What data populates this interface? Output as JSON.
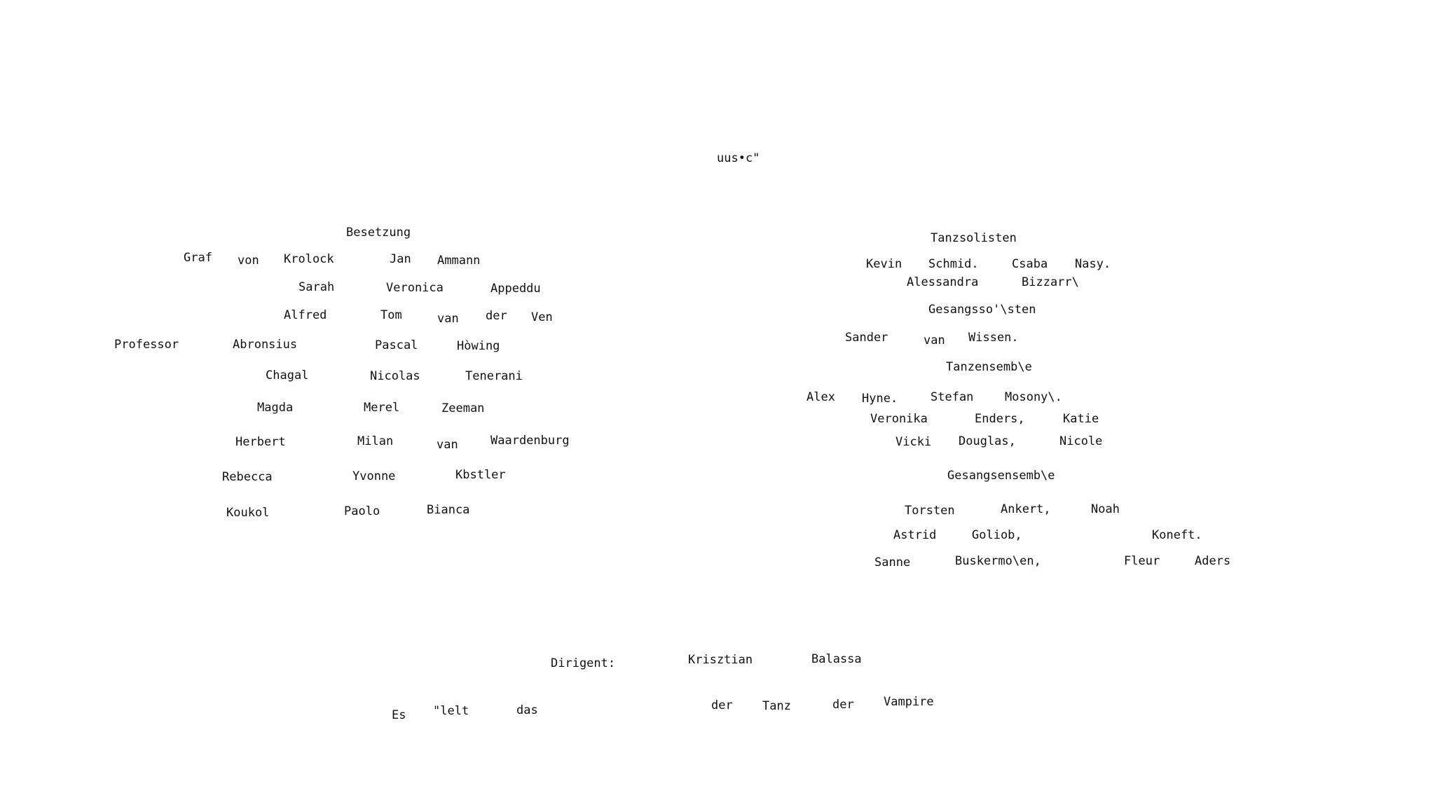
{
  "header": {
    "text": "uus•c\""
  },
  "besetzung": {
    "heading": "Besetzung",
    "rows": [
      [
        "Graf",
        "von",
        "Krolock",
        "Jan",
        "Ammann"
      ],
      [
        "Sarah",
        "Veronica",
        "Appeddu"
      ],
      [
        "Alfred",
        "Tom",
        "van",
        "der",
        "Ven"
      ],
      [
        "Professor",
        "Abronsius",
        "Pascal",
        "Hòwing"
      ],
      [
        "Chagal",
        "Nicolas",
        "Tenerani"
      ],
      [
        "Magda",
        "Merel",
        "Zeeman"
      ],
      [
        "Herbert",
        "Milan",
        "van",
        "Waardenburg"
      ],
      [
        "Rebecca",
        "Yvonne",
        "Kbstler"
      ],
      [
        "Koukol",
        "Paolo",
        "Bianca"
      ]
    ]
  },
  "ensemble": {
    "tanzsolisten_heading": "Tanzsolisten",
    "tanzsolisten_rows": [
      [
        "Kevin",
        "Schmid.",
        "Csaba",
        "Nasy."
      ],
      [
        "Alessandra",
        "Bizzarr\\"
      ]
    ],
    "gesangssolisten_heading": "Gesangsso'\\sten",
    "gesangssolisten_rows": [
      [
        "Sander",
        "van",
        "Wissen."
      ]
    ],
    "tanzensemble_heading": "Tanzensemb\\e",
    "tanzensemble_rows": [
      [
        "Alex",
        "Hyne.",
        "Stefan",
        "Mosony\\."
      ],
      [
        "Veronika",
        "Enders,",
        "Katie"
      ],
      [
        "Vicki",
        "Douglas,",
        "Nicole"
      ]
    ],
    "gesangsensemble_heading": "Gesangsensemb\\e",
    "gesangsensemble_rows": [
      [
        "Torsten",
        "Ankert,",
        "Noah"
      ],
      [
        "Astrid",
        "Goliob,",
        "Koneft."
      ],
      [
        "Sanne",
        "Buskermo\\en,",
        "Fleur",
        "Aders"
      ]
    ]
  },
  "footer": {
    "dirigent": [
      "Dirigent:",
      "Krisztian",
      "Balassa"
    ],
    "title": [
      "Es",
      "\"lelt",
      "das",
      "der",
      "Tanz",
      "der",
      "Vampire"
    ]
  }
}
